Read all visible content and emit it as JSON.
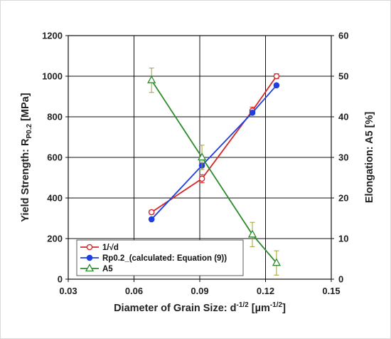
{
  "chart_data": {
    "type": "line",
    "x_axis": {
      "label_main": "Diameter of Grain Size: d",
      "label_sup": "-1/2",
      "label_unit_open": " [µm",
      "label_unit_sup": "-1/2",
      "label_unit_close": "]",
      "ticks": [
        "0.03",
        "0.06",
        "0.09",
        "0.12",
        "0.15"
      ],
      "range": [
        0.03,
        0.15
      ]
    },
    "y_left": {
      "label_main": "Yield Strength: R",
      "label_sub": "P0.2",
      "label_unit": " [MPa]",
      "ticks": [
        "0",
        "200",
        "400",
        "600",
        "800",
        "1000",
        "1200"
      ],
      "range": [
        0,
        1200
      ]
    },
    "y_right": {
      "label": "Elongation: A5 [%]",
      "ticks": [
        "0",
        "10",
        "20",
        "30",
        "40",
        "50",
        "60"
      ],
      "range": [
        0,
        60
      ]
    },
    "grid": true,
    "legend_position": "bottom-left",
    "series": [
      {
        "name": "1/√d",
        "axis": "left",
        "color": "#d62728",
        "marker": "circle-open",
        "x": [
          0.068,
          0.091,
          0.114,
          0.125
        ],
        "y": [
          330,
          495,
          830,
          1000
        ],
        "err": [
          10,
          20,
          18,
          12
        ]
      },
      {
        "name": "Rp0.2_(calculated: Equation (9))",
        "axis": "left",
        "color": "#1f3fe0",
        "marker": "circle-filled",
        "x": [
          0.068,
          0.091,
          0.114,
          0.125
        ],
        "y": [
          295,
          560,
          820,
          955
        ],
        "err": []
      },
      {
        "name": "A5",
        "axis": "right",
        "color": "#2e8b2e",
        "error_color": "#a0a02a",
        "marker": "triangle-open",
        "x": [
          0.068,
          0.091,
          0.114,
          0.125
        ],
        "y": [
          49,
          30,
          11,
          4
        ],
        "err": [
          3,
          3,
          3,
          3
        ]
      }
    ]
  }
}
